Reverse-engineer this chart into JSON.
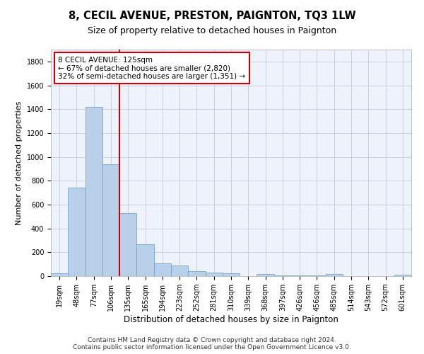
{
  "title": "8, CECIL AVENUE, PRESTON, PAIGNTON, TQ3 1LW",
  "subtitle": "Size of property relative to detached houses in Paignton",
  "xlabel": "Distribution of detached houses by size in Paignton",
  "ylabel": "Number of detached properties",
  "bar_color": "#b8d0e8",
  "bar_edge_color": "#6699cc",
  "background_color": "#eef2fa",
  "grid_color": "#c8c8d8",
  "categories": [
    "19sqm",
    "48sqm",
    "77sqm",
    "106sqm",
    "135sqm",
    "165sqm",
    "194sqm",
    "223sqm",
    "252sqm",
    "281sqm",
    "310sqm",
    "339sqm",
    "368sqm",
    "397sqm",
    "426sqm",
    "456sqm",
    "485sqm",
    "514sqm",
    "543sqm",
    "572sqm",
    "601sqm"
  ],
  "values": [
    22,
    745,
    1420,
    938,
    530,
    265,
    105,
    90,
    40,
    28,
    22,
    0,
    15,
    5,
    5,
    5,
    15,
    0,
    0,
    0,
    12
  ],
  "ylim": [
    0,
    1900
  ],
  "yticks": [
    0,
    200,
    400,
    600,
    800,
    1000,
    1200,
    1400,
    1600,
    1800
  ],
  "vline_x": 3.5,
  "annotation_text": "8 CECIL AVENUE: 125sqm\n← 67% of detached houses are smaller (2,820)\n32% of semi-detached houses are larger (1,351) →",
  "annotation_box_color": "#ffffff",
  "annotation_box_edge": "#cc0000",
  "vline_color": "#cc0000",
  "footer": "Contains HM Land Registry data © Crown copyright and database right 2024.\nContains public sector information licensed under the Open Government Licence v3.0.",
  "title_fontsize": 10.5,
  "subtitle_fontsize": 9,
  "ylabel_fontsize": 8,
  "xlabel_fontsize": 8.5,
  "tick_fontsize": 7,
  "annotation_fontsize": 7.5,
  "footer_fontsize": 6.5
}
